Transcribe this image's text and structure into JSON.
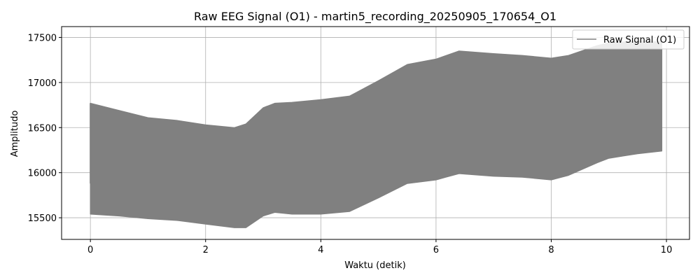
{
  "chart_data": {
    "type": "area",
    "title": "Raw EEG Signal (O1) - martin5_recording_20250905_170654_O1",
    "xlabel": "Waktu (detik)",
    "ylabel": "Amplitudo",
    "xlim": [
      -0.5,
      10.4
    ],
    "ylim": [
      15260,
      17620
    ],
    "xticks": [
      0,
      2,
      4,
      6,
      8,
      10
    ],
    "yticks": [
      15500,
      16000,
      16500,
      17000,
      17500
    ],
    "grid": true,
    "legend": {
      "position": "top-right"
    },
    "series": [
      {
        "name": "Raw Signal (O1)",
        "color": "#808080",
        "x": [
          0,
          0.5,
          1.0,
          1.5,
          2.0,
          2.5,
          2.7,
          3.0,
          3.2,
          3.5,
          4.0,
          4.5,
          5.0,
          5.5,
          6.0,
          6.4,
          7.0,
          7.5,
          8.0,
          8.3,
          8.8,
          9.0,
          9.5,
          9.92
        ],
        "upper": [
          16770,
          16690,
          16610,
          16580,
          16530,
          16500,
          16540,
          16720,
          16770,
          16780,
          16810,
          16850,
          17020,
          17200,
          17260,
          17350,
          17320,
          17300,
          17270,
          17300,
          17410,
          17440,
          17460,
          17450
        ],
        "lower": [
          15540,
          15520,
          15490,
          15470,
          15430,
          15390,
          15390,
          15520,
          15560,
          15540,
          15540,
          15570,
          15720,
          15880,
          15920,
          15990,
          15960,
          15950,
          15920,
          15970,
          16110,
          16160,
          16210,
          16240
        ]
      }
    ]
  }
}
